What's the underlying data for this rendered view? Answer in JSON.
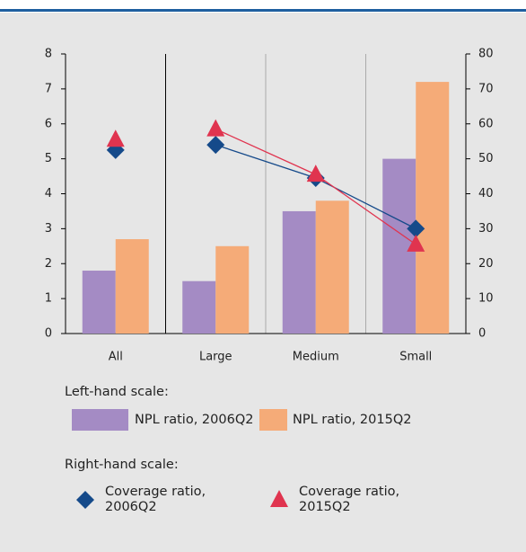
{
  "chart_data": {
    "type": "bar",
    "categories": [
      "All",
      "Large",
      "Medium",
      "Small"
    ],
    "series": [
      {
        "name": "NPL ratio, 2006Q2",
        "color": "#a48bc4",
        "values": [
          1.8,
          1.5,
          3.5,
          5.0
        ]
      },
      {
        "name": "NPL ratio, 2015Q2",
        "color": "#f5ab78",
        "values": [
          2.7,
          2.5,
          3.8,
          7.2
        ]
      },
      {
        "name": "Coverage ratio, 2006Q2",
        "color": "#154a8a",
        "axis": "y2",
        "marker": "diamond",
        "values": [
          52.5,
          54,
          44.5,
          30
        ]
      },
      {
        "name": "Coverage ratio, 2015Q2",
        "color": "#e0344f",
        "axis": "y2",
        "marker": "triangle",
        "values": [
          55.5,
          58.5,
          45.5,
          25.5
        ]
      }
    ],
    "ylim": [
      0,
      8
    ],
    "yticks": [
      0,
      1,
      2,
      3,
      4,
      5,
      6,
      7,
      8
    ],
    "y2lim": [
      0,
      80
    ],
    "y2ticks": [
      0,
      10,
      20,
      30,
      40,
      50,
      60,
      70,
      80
    ],
    "legend_left_title": "Left-hand scale:",
    "legend_right_title": "Right-hand scale:"
  }
}
